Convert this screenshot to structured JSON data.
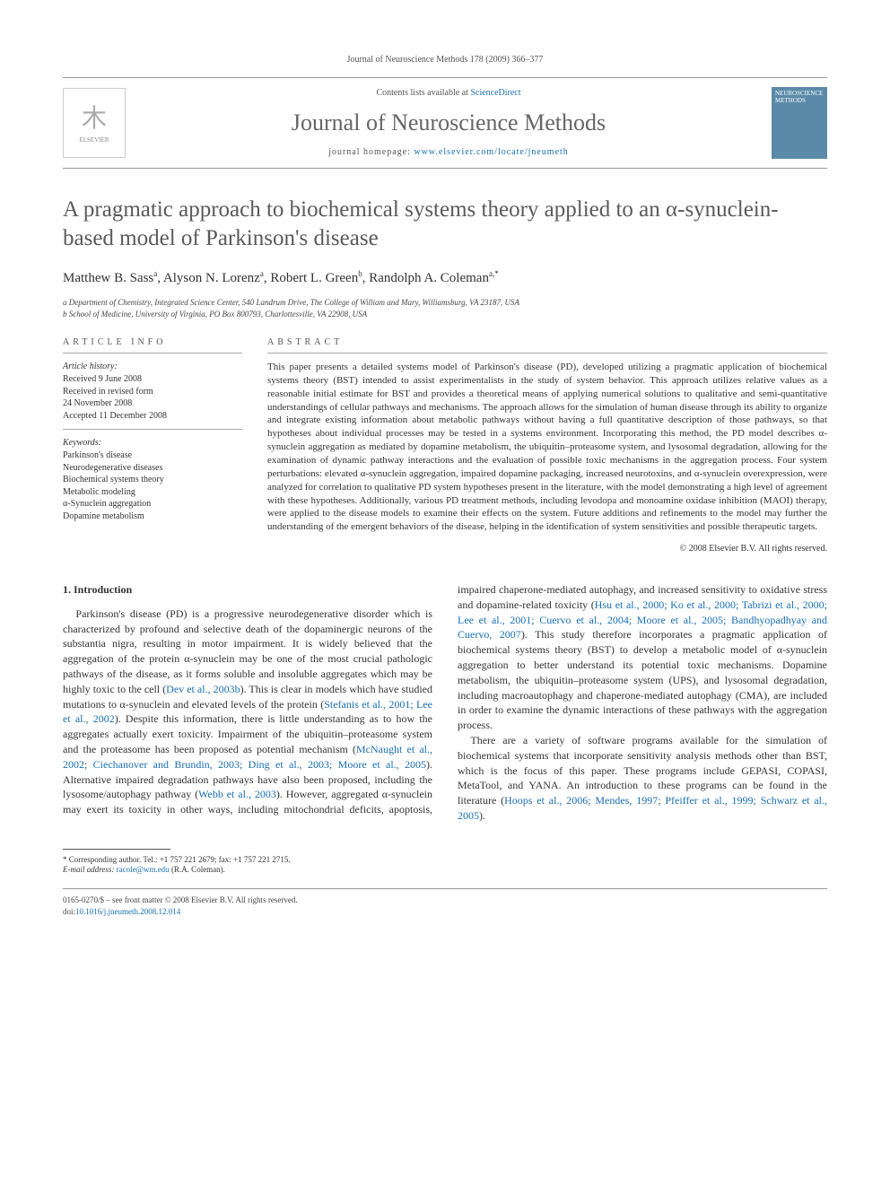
{
  "running_head": "Journal of Neuroscience Methods 178 (2009) 366–377",
  "header": {
    "contents_prefix": "Contents lists available at ",
    "contents_link": "ScienceDirect",
    "journal_name": "Journal of Neuroscience Methods",
    "homepage_prefix": "journal homepage: ",
    "homepage_url": "www.elsevier.com/locate/jneumeth",
    "elsevier_label": "ELSEVIER",
    "cover_label": "NEUROSCIENCE METHODS"
  },
  "title": "A pragmatic approach to biochemical systems theory applied to an α-synuclein-based model of Parkinson's disease",
  "authors_html": "Matthew B. Sass<sup>a</sup>, Alyson N. Lorenz<sup>a</sup>, Robert L. Green<sup>b</sup>, Randolph A. Coleman<sup>a,*</sup>",
  "affiliations": [
    "a Department of Chemistry, Integrated Science Center, 540 Landrum Drive, The College of William and Mary, Williamsburg, VA 23187, USA",
    "b School of Medicine, University of Virginia, PO Box 800793, Charlottesville, VA 22908, USA"
  ],
  "article_info": {
    "head": "ARTICLE INFO",
    "history_label": "Article history:",
    "history": [
      "Received 9 June 2008",
      "Received in revised form",
      "24 November 2008",
      "Accepted 11 December 2008"
    ],
    "keywords_label": "Keywords:",
    "keywords": [
      "Parkinson's disease",
      "Neurodegenerative diseases",
      "Biochemical systems theory",
      "Metabolic modeling",
      "α-Synuclein aggregation",
      "Dopamine metabolism"
    ]
  },
  "abstract": {
    "head": "ABSTRACT",
    "text": "This paper presents a detailed systems model of Parkinson's disease (PD), developed utilizing a pragmatic application of biochemical systems theory (BST) intended to assist experimentalists in the study of system behavior. This approach utilizes relative values as a reasonable initial estimate for BST and provides a theoretical means of applying numerical solutions to qualitative and semi-quantitative understandings of cellular pathways and mechanisms. The approach allows for the simulation of human disease through its ability to organize and integrate existing information about metabolic pathways without having a full quantitative description of those pathways, so that hypotheses about individual processes may be tested in a systems environment. Incorporating this method, the PD model describes α-synuclein aggregation as mediated by dopamine metabolism, the ubiquitin–proteasome system, and lysosomal degradation, allowing for the examination of dynamic pathway interactions and the evaluation of possible toxic mechanisms in the aggregation process. Four system perturbations: elevated α-synuclein aggregation, impaired dopamine packaging, increased neurotoxins, and α-synuclein overexpression, were analyzed for correlation to qualitative PD system hypotheses present in the literature, with the model demonstrating a high level of agreement with these hypotheses. Additionally, various PD treatment methods, including levodopa and monoamine oxidase inhibition (MAOI) therapy, were applied to the disease models to examine their effects on the system. Future additions and refinements to the model may further the understanding of the emergent behaviors of the disease, helping in the identification of system sensitivities and possible therapeutic targets.",
    "copyright": "© 2008 Elsevier B.V. All rights reserved."
  },
  "section1": {
    "heading": "1.  Introduction",
    "p1_a": "Parkinson's disease (PD) is a progressive neurodegenerative disorder which is characterized by profound and selective death of the dopaminergic neurons of the substantia nigra, resulting in motor impairment. It is widely believed that the aggregation of the protein α-synuclein may be one of the most crucial pathologic pathways of the disease, as it forms soluble and insoluble aggregates which may be highly toxic to the cell (",
    "c1": "Dev et al., 2003b",
    "p1_b": "). This is clear in models which have studied mutations to α-synuclein and elevated levels of the protein (",
    "c2": "Stefanis et al., 2001; Lee et al., 2002",
    "p1_c": "). Despite this information, there is little understanding as to how the aggregates actually exert toxicity. Impairment of the ubiquitin–proteasome system and the proteasome has been proposed as potential mechanism (",
    "c3": "McNaught et al., 2002; Ciechanover and Brundin, 2003; Ding et al., 2003; Moore et al., 2005",
    "p1_d": "). Alternative impaired degradation pathways have also ",
    "p1_e": "been proposed, including the lysosome/autophagy pathway (",
    "c4": "Webb et al., 2003",
    "p1_f": "). However, aggregated α-synuclein may exert its toxicity in other ways, including mitochondrial deficits, apoptosis, impaired chaperone-mediated autophagy, and increased sensitivity to oxidative stress and dopamine-related toxicity (",
    "c5": "Hsu et al., 2000; Ko et al., 2000; Tabrizi et al., 2000; Lee et al., 2001; Cuervo et al., 2004; Moore et al., 2005; Bandhyopadhyay and Cuervo, 2007",
    "p1_g": "). This study therefore incorporates a pragmatic application of biochemical systems theory (BST) to develop a metabolic model of α-synuclein aggregation to better understand its potential toxic mechanisms. Dopamine metabolism, the ubiquitin–proteasome system (UPS), and lysosomal degradation, including macroautophagy and chaperone-mediated autophagy (CMA), are included in order to examine the dynamic interactions of these pathways with the aggregation process.",
    "p2_a": "There are a variety of software programs available for the simulation of biochemical systems that incorporate sensitivity analysis methods other than BST, which is the focus of this paper. These programs include GEPASI, COPASI, MetaTool, and YANA. An introduction to these programs can be found in the literature (",
    "c6": "Hoops et al., 2006; Mendes, 1997; Pfeiffer et al., 1999; Schwarz et al., 2005",
    "p2_b": ")."
  },
  "footnote": {
    "corr": "* Corresponding author. Tel.: +1 757 221 2679; fax: +1 757 221 2715.",
    "email_label": "E-mail address: ",
    "email": "racole@wm.edu",
    "email_suffix": " (R.A. Coleman)."
  },
  "footer": {
    "line1": "0165-0270/$ – see front matter © 2008 Elsevier B.V. All rights reserved.",
    "doi_prefix": "doi:",
    "doi": "10.1016/j.jneumeth.2008.12.014"
  }
}
